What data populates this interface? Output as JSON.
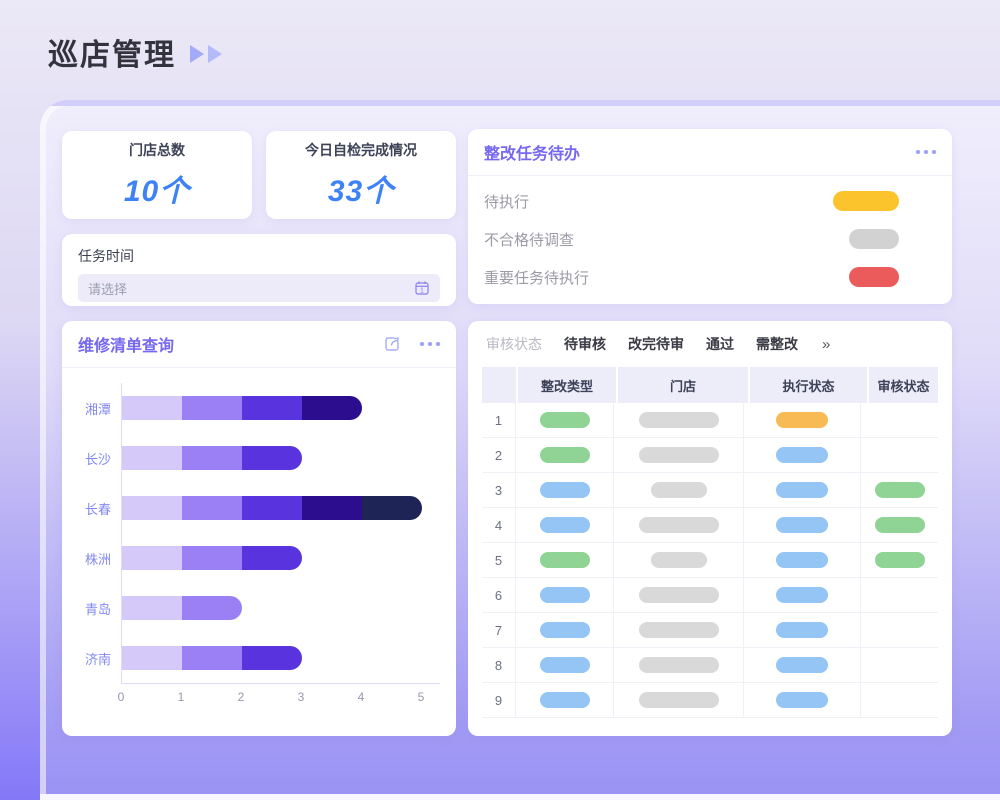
{
  "page": {
    "title": "巡店管理"
  },
  "stats": [
    {
      "label": "门店总数",
      "value": "10个"
    },
    {
      "label": "今日自检完成情况",
      "value": "33个"
    }
  ],
  "task_time": {
    "label": "任务时间",
    "placeholder": "请选择"
  },
  "todo_panel": {
    "title": "整改任务待办",
    "items": [
      {
        "label": "待执行",
        "color": "#fbc42d",
        "pill_width": 66
      },
      {
        "label": "不合格待调查",
        "color": "#d2d2d2",
        "pill_width": 50
      },
      {
        "label": "重要任务待执行",
        "color": "#ec5b5c",
        "pill_width": 50
      }
    ]
  },
  "chart_panel": {
    "title": "维修清单查询"
  },
  "chart_data": {
    "type": "bar",
    "orientation": "horizontal",
    "title": "维修清单查询",
    "categories": [
      "湘潭",
      "长沙",
      "长春",
      "株洲",
      "青岛",
      "济南"
    ],
    "series": [
      {
        "name": "segment-1",
        "values": [
          1,
          1,
          1,
          1,
          1,
          1
        ]
      },
      {
        "name": "segment-2",
        "values": [
          1,
          1,
          1,
          1,
          1,
          1
        ]
      },
      {
        "name": "segment-3",
        "values": [
          1,
          1,
          1,
          1,
          0,
          1
        ]
      },
      {
        "name": "segment-4",
        "values": [
          1,
          0,
          1,
          0,
          0,
          0
        ]
      },
      {
        "name": "segment-5",
        "values": [
          0,
          0,
          1,
          0,
          0,
          0
        ]
      }
    ],
    "totals": [
      4,
      3,
      5,
      3,
      2,
      3
    ],
    "colors": [
      "#d5c9f9",
      "#9b7ff5",
      "#5833de",
      "#2b0d8d",
      "#1e2556"
    ],
    "xlim": [
      0,
      5
    ],
    "xticks": [
      "0",
      "1",
      "2",
      "3",
      "4",
      "5"
    ],
    "grid": false,
    "legend": "none"
  },
  "table_panel": {
    "filter_label": "审核状态",
    "tabs": [
      "待审核",
      "改完待审",
      "通过",
      "需整改"
    ],
    "more_glyph": "»",
    "columns": [
      "",
      "整改类型",
      "门店",
      "执行状态",
      "审核状态"
    ],
    "pill_colors": {
      "green": "#8fd494",
      "blue": "#95c5f5",
      "orange": "#f7ba55",
      "gray": "#d9d9d9"
    },
    "rows": [
      {
        "num": "1",
        "type_status": "green",
        "store_width": "wide",
        "exec_status": "orange",
        "audit_status": null
      },
      {
        "num": "2",
        "type_status": "green",
        "store_width": "wide",
        "exec_status": "blue",
        "audit_status": null
      },
      {
        "num": "3",
        "type_status": "blue",
        "store_width": "short",
        "exec_status": "blue",
        "audit_status": "green"
      },
      {
        "num": "4",
        "type_status": "blue",
        "store_width": "wide",
        "exec_status": "blue",
        "audit_status": "green"
      },
      {
        "num": "5",
        "type_status": "green",
        "store_width": "short",
        "exec_status": "blue",
        "audit_status": "green"
      },
      {
        "num": "6",
        "type_status": "blue",
        "store_width": "wide",
        "exec_status": "blue",
        "audit_status": null
      },
      {
        "num": "7",
        "type_status": "blue",
        "store_width": "wide",
        "exec_status": "blue",
        "audit_status": null
      },
      {
        "num": "8",
        "type_status": "blue",
        "store_width": "wide",
        "exec_status": "blue",
        "audit_status": null
      },
      {
        "num": "9",
        "type_status": "blue",
        "store_width": "wide",
        "exec_status": "blue",
        "audit_status": null
      }
    ]
  },
  "colors": {
    "accent_purple": "#7668f0",
    "value_blue": "#3e82f6",
    "icon_periwinkle": "#a0a8f6",
    "category_label": "#8289f0"
  }
}
